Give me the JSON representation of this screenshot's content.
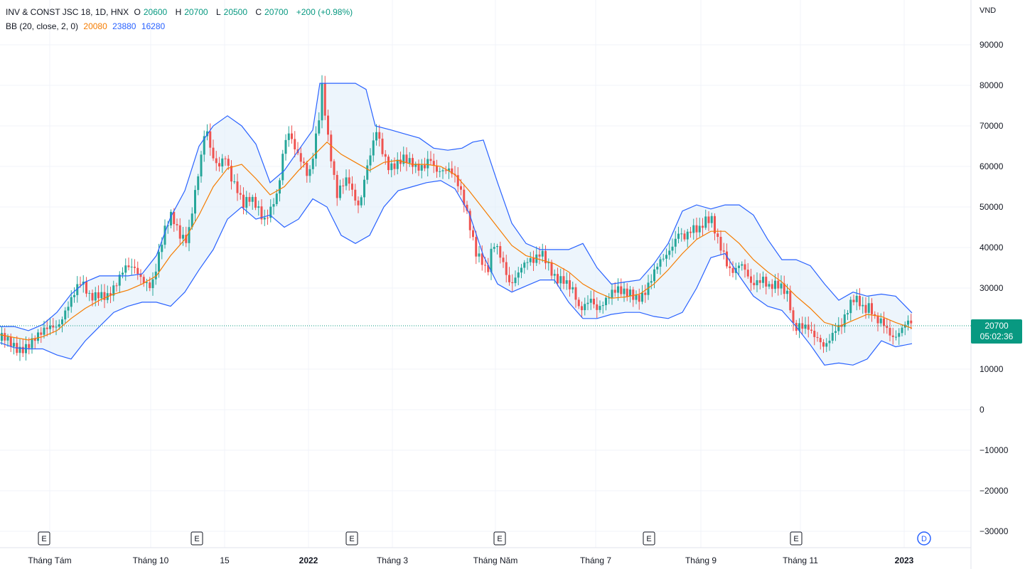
{
  "legend": {
    "symbol_line": "INV & CONST JSC 18, 1D, HNX",
    "open_label": "O",
    "open": "20600",
    "high_label": "H",
    "high": "20700",
    "low_label": "L",
    "low": "20500",
    "close_label": "C",
    "close": "20700",
    "change": "+200 (+0.98%)",
    "bb_label": "BB (20, close, 2, 0)",
    "bb_basis": "20080",
    "bb_upper": "23880",
    "bb_lower": "16280"
  },
  "price_tag": {
    "price": "20700",
    "countdown": "05:02:36"
  },
  "colors": {
    "up": "#26a69a",
    "down": "#ef5350",
    "basis": "#f57c00",
    "band": "#2962ff",
    "band_fill": "#e3f0fb",
    "grid": "#f0f3fa",
    "price_line": "#089981"
  },
  "chart_data": {
    "type": "candlestick",
    "unit": "VND",
    "ylim": [
      -35000,
      95000
    ],
    "yticks": [
      90000,
      80000,
      70000,
      60000,
      50000,
      40000,
      30000,
      20000,
      10000,
      0,
      -10000,
      -20000,
      -30000
    ],
    "ytick_labels": [
      "90000",
      "80000",
      "70000",
      "60000",
      "50000",
      "40000",
      "30000",
      "20000",
      "10000",
      "0",
      "−10000",
      "−20000",
      "−30000"
    ],
    "xticks": [
      {
        "label": "Tháng Tám",
        "bold": false
      },
      {
        "label": "Tháng 10",
        "bold": false
      },
      {
        "label": "15",
        "bold": false
      },
      {
        "label": "2022",
        "bold": true
      },
      {
        "label": "Tháng 3",
        "bold": false
      },
      {
        "label": "Tháng Năm",
        "bold": false
      },
      {
        "label": "Tháng 7",
        "bold": false
      },
      {
        "label": "Tháng 9",
        "bold": false
      },
      {
        "label": "Tháng 11",
        "bold": false
      },
      {
        "label": "2023",
        "bold": true
      }
    ],
    "events": [
      "E",
      "E",
      "E",
      "E",
      "E",
      "E"
    ],
    "dividend_marker": "D",
    "close_path": [
      [
        0,
        17000
      ],
      [
        12,
        16500
      ],
      [
        25,
        15800
      ],
      [
        40,
        16500
      ],
      [
        55,
        17500
      ],
      [
        68,
        20000
      ],
      [
        80,
        21500
      ],
      [
        92,
        26000
      ],
      [
        103,
        28500
      ],
      [
        112,
        30500
      ],
      [
        125,
        27000
      ],
      [
        138,
        29500
      ],
      [
        150,
        29000
      ],
      [
        162,
        30500
      ],
      [
        175,
        34000
      ],
      [
        188,
        35000
      ],
      [
        200,
        33000
      ],
      [
        212,
        31000
      ],
      [
        220,
        36000
      ],
      [
        230,
        43000
      ],
      [
        240,
        47500
      ],
      [
        250,
        44000
      ],
      [
        262,
        43000
      ],
      [
        272,
        53000
      ],
      [
        280,
        60000
      ],
      [
        288,
        69000
      ],
      [
        296,
        62000
      ],
      [
        305,
        60000
      ],
      [
        315,
        64000
      ],
      [
        324,
        58000
      ],
      [
        333,
        54000
      ],
      [
        340,
        49500
      ],
      [
        350,
        51000
      ],
      [
        360,
        50000
      ],
      [
        370,
        47500
      ],
      [
        380,
        51000
      ],
      [
        390,
        54000
      ],
      [
        398,
        64500
      ],
      [
        405,
        67000
      ],
      [
        415,
        63000
      ],
      [
        425,
        61500
      ],
      [
        433,
        58500
      ],
      [
        440,
        65000
      ],
      [
        447,
        72000
      ],
      [
        452,
        80000
      ],
      [
        458,
        68000
      ],
      [
        465,
        60000
      ],
      [
        472,
        52000
      ],
      [
        480,
        56000
      ],
      [
        488,
        58500
      ],
      [
        496,
        54000
      ],
      [
        504,
        50000
      ],
      [
        512,
        57000
      ],
      [
        520,
        62000
      ],
      [
        528,
        68000
      ],
      [
        536,
        64000
      ],
      [
        545,
        61000
      ],
      [
        555,
        61500
      ],
      [
        565,
        62000
      ],
      [
        575,
        60000
      ],
      [
        585,
        58500
      ],
      [
        595,
        60000
      ],
      [
        603,
        63500
      ],
      [
        612,
        60000
      ],
      [
        622,
        59000
      ],
      [
        632,
        58000
      ],
      [
        642,
        55000
      ],
      [
        652,
        51000
      ],
      [
        660,
        46000
      ],
      [
        668,
        40000
      ],
      [
        676,
        37500
      ],
      [
        684,
        33000
      ],
      [
        692,
        40000
      ],
      [
        700,
        38000
      ],
      [
        708,
        35000
      ],
      [
        716,
        31500
      ],
      [
        724,
        34000
      ],
      [
        732,
        36000
      ],
      [
        740,
        36500
      ],
      [
        750,
        35500
      ],
      [
        760,
        38000
      ],
      [
        770,
        36000
      ],
      [
        780,
        33500
      ],
      [
        790,
        33000
      ],
      [
        798,
        30500
      ],
      [
        806,
        28000
      ],
      [
        814,
        23000
      ],
      [
        822,
        25500
      ],
      [
        830,
        28000
      ],
      [
        838,
        26000
      ],
      [
        846,
        27000
      ],
      [
        855,
        28000
      ],
      [
        865,
        28500
      ],
      [
        875,
        28000
      ],
      [
        885,
        29000
      ],
      [
        895,
        28500
      ],
      [
        905,
        29500
      ],
      [
        915,
        32000
      ],
      [
        925,
        35000
      ],
      [
        935,
        37000
      ],
      [
        945,
        41000
      ],
      [
        953,
        45000
      ],
      [
        962,
        43500
      ],
      [
        972,
        44500
      ],
      [
        982,
        43000
      ],
      [
        992,
        46000
      ],
      [
        1000,
        47000
      ],
      [
        1008,
        43000
      ],
      [
        1016,
        40000
      ],
      [
        1024,
        35000
      ],
      [
        1032,
        33500
      ],
      [
        1040,
        35000
      ],
      [
        1048,
        33000
      ],
      [
        1056,
        30500
      ],
      [
        1064,
        32500
      ],
      [
        1072,
        33500
      ],
      [
        1080,
        31000
      ],
      [
        1090,
        30500
      ],
      [
        1100,
        28500
      ],
      [
        1108,
        27000
      ],
      [
        1115,
        20000
      ],
      [
        1125,
        22000
      ],
      [
        1135,
        21500
      ],
      [
        1143,
        18500
      ],
      [
        1150,
        16500
      ],
      [
        1158,
        14000
      ],
      [
        1166,
        16500
      ],
      [
        1174,
        20000
      ],
      [
        1182,
        22000
      ],
      [
        1190,
        25500
      ],
      [
        1198,
        28000
      ],
      [
        1206,
        26500
      ],
      [
        1214,
        23000
      ],
      [
        1222,
        24500
      ],
      [
        1230,
        22000
      ],
      [
        1240,
        23000
      ],
      [
        1248,
        20500
      ],
      [
        1256,
        18000
      ],
      [
        1264,
        18500
      ],
      [
        1272,
        20000
      ],
      [
        1280,
        20700
      ]
    ],
    "basis_path": [
      [
        0,
        18500
      ],
      [
        20,
        17800
      ],
      [
        40,
        17200
      ],
      [
        60,
        18000
      ],
      [
        80,
        19500
      ],
      [
        100,
        22500
      ],
      [
        120,
        25000
      ],
      [
        140,
        27000
      ],
      [
        160,
        28500
      ],
      [
        180,
        29500
      ],
      [
        200,
        31000
      ],
      [
        220,
        33000
      ],
      [
        240,
        38000
      ],
      [
        260,
        42000
      ],
      [
        280,
        48000
      ],
      [
        300,
        55000
      ],
      [
        320,
        59500
      ],
      [
        340,
        60500
      ],
      [
        360,
        57000
      ],
      [
        380,
        53000
      ],
      [
        400,
        55000
      ],
      [
        420,
        59000
      ],
      [
        440,
        62500
      ],
      [
        460,
        66000
      ],
      [
        480,
        63000
      ],
      [
        500,
        61000
      ],
      [
        520,
        59000
      ],
      [
        540,
        61000
      ],
      [
        560,
        61500
      ],
      [
        580,
        60500
      ],
      [
        600,
        60500
      ],
      [
        620,
        60000
      ],
      [
        640,
        58000
      ],
      [
        660,
        54000
      ],
      [
        680,
        49500
      ],
      [
        700,
        45000
      ],
      [
        720,
        40500
      ],
      [
        740,
        38000
      ],
      [
        760,
        37000
      ],
      [
        780,
        36000
      ],
      [
        800,
        34000
      ],
      [
        820,
        31000
      ],
      [
        840,
        29000
      ],
      [
        860,
        27500
      ],
      [
        880,
        27800
      ],
      [
        900,
        28500
      ],
      [
        920,
        31000
      ],
      [
        940,
        34500
      ],
      [
        960,
        38500
      ],
      [
        980,
        42000
      ],
      [
        1000,
        44000
      ],
      [
        1020,
        44000
      ],
      [
        1040,
        41000
      ],
      [
        1060,
        37000
      ],
      [
        1080,
        34000
      ],
      [
        1100,
        31500
      ],
      [
        1120,
        28000
      ],
      [
        1140,
        25000
      ],
      [
        1160,
        21500
      ],
      [
        1180,
        20500
      ],
      [
        1200,
        22000
      ],
      [
        1220,
        23500
      ],
      [
        1240,
        23000
      ],
      [
        1260,
        21500
      ],
      [
        1283,
        20080
      ]
    ],
    "upper_path": [
      [
        0,
        20500
      ],
      [
        20,
        20500
      ],
      [
        40,
        19500
      ],
      [
        60,
        21000
      ],
      [
        80,
        24000
      ],
      [
        100,
        28500
      ],
      [
        120,
        31500
      ],
      [
        140,
        33000
      ],
      [
        160,
        33000
      ],
      [
        180,
        33000
      ],
      [
        200,
        33500
      ],
      [
        220,
        38000
      ],
      [
        240,
        47500
      ],
      [
        260,
        54000
      ],
      [
        280,
        65000
      ],
      [
        300,
        70000
      ],
      [
        320,
        72500
      ],
      [
        340,
        70000
      ],
      [
        360,
        65500
      ],
      [
        380,
        56000
      ],
      [
        400,
        59000
      ],
      [
        420,
        64000
      ],
      [
        440,
        69000
      ],
      [
        450,
        80500
      ],
      [
        470,
        80500
      ],
      [
        500,
        80500
      ],
      [
        515,
        79000
      ],
      [
        528,
        70000
      ],
      [
        550,
        69000
      ],
      [
        570,
        68000
      ],
      [
        590,
        67000
      ],
      [
        610,
        64500
      ],
      [
        630,
        64000
      ],
      [
        650,
        64500
      ],
      [
        665,
        66000
      ],
      [
        680,
        66500
      ],
      [
        700,
        56000
      ],
      [
        720,
        46000
      ],
      [
        740,
        41000
      ],
      [
        760,
        39500
      ],
      [
        780,
        39500
      ],
      [
        800,
        39500
      ],
      [
        820,
        41000
      ],
      [
        840,
        35000
      ],
      [
        860,
        31000
      ],
      [
        880,
        31500
      ],
      [
        900,
        32000
      ],
      [
        920,
        36000
      ],
      [
        940,
        41000
      ],
      [
        960,
        49000
      ],
      [
        980,
        50500
      ],
      [
        1000,
        49500
      ],
      [
        1020,
        50500
      ],
      [
        1040,
        50500
      ],
      [
        1060,
        48000
      ],
      [
        1080,
        42000
      ],
      [
        1100,
        37000
      ],
      [
        1120,
        37000
      ],
      [
        1140,
        35500
      ],
      [
        1160,
        31000
      ],
      [
        1180,
        27000
      ],
      [
        1200,
        29000
      ],
      [
        1220,
        28000
      ],
      [
        1240,
        28500
      ],
      [
        1260,
        28000
      ],
      [
        1283,
        23880
      ]
    ],
    "lower_path": [
      [
        0,
        16500
      ],
      [
        20,
        15300
      ],
      [
        40,
        15000
      ],
      [
        60,
        15000
      ],
      [
        80,
        13500
      ],
      [
        100,
        12500
      ],
      [
        120,
        17000
      ],
      [
        140,
        20500
      ],
      [
        160,
        24000
      ],
      [
        180,
        25500
      ],
      [
        200,
        26500
      ],
      [
        220,
        26500
      ],
      [
        240,
        25500
      ],
      [
        260,
        29000
      ],
      [
        280,
        34500
      ],
      [
        300,
        39500
      ],
      [
        320,
        47000
      ],
      [
        340,
        50000
      ],
      [
        360,
        47000
      ],
      [
        380,
        48000
      ],
      [
        400,
        45000
      ],
      [
        420,
        47000
      ],
      [
        440,
        52000
      ],
      [
        460,
        50000
      ],
      [
        480,
        43000
      ],
      [
        500,
        41000
      ],
      [
        520,
        43000
      ],
      [
        540,
        50000
      ],
      [
        560,
        54000
      ],
      [
        580,
        55000
      ],
      [
        600,
        56000
      ],
      [
        620,
        56500
      ],
      [
        640,
        54500
      ],
      [
        660,
        48500
      ],
      [
        680,
        38000
      ],
      [
        700,
        31000
      ],
      [
        720,
        29000
      ],
      [
        740,
        30500
      ],
      [
        760,
        32000
      ],
      [
        780,
        32000
      ],
      [
        800,
        26500
      ],
      [
        820,
        22500
      ],
      [
        840,
        22500
      ],
      [
        860,
        23500
      ],
      [
        880,
        24000
      ],
      [
        900,
        24000
      ],
      [
        920,
        23000
      ],
      [
        940,
        22500
      ],
      [
        960,
        24000
      ],
      [
        980,
        30000
      ],
      [
        1000,
        37500
      ],
      [
        1020,
        38500
      ],
      [
        1040,
        33000
      ],
      [
        1060,
        28000
      ],
      [
        1080,
        25500
      ],
      [
        1100,
        24500
      ],
      [
        1120,
        20500
      ],
      [
        1140,
        16000
      ],
      [
        1160,
        11000
      ],
      [
        1180,
        11500
      ],
      [
        1200,
        11000
      ],
      [
        1220,
        12500
      ],
      [
        1240,
        17000
      ],
      [
        1260,
        15500
      ],
      [
        1283,
        16280
      ]
    ]
  }
}
